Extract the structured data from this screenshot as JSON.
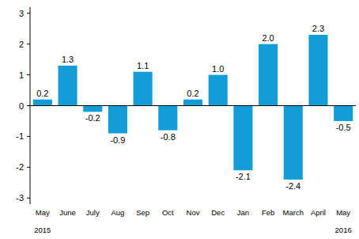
{
  "chart_data": {
    "type": "bar",
    "categories": [
      "May",
      "June",
      "July",
      "Aug",
      "Sep",
      "Oct",
      "Nov",
      "Dec",
      "Jan",
      "Feb",
      "March",
      "April",
      "May"
    ],
    "values": [
      0.2,
      1.3,
      -0.2,
      -0.9,
      1.1,
      -0.8,
      0.2,
      1.0,
      -2.1,
      2.0,
      -2.4,
      2.3,
      -0.5
    ],
    "value_labels": [
      "0.2",
      "1.3",
      "-0.2",
      "-0.9",
      "1.1",
      "-0.8",
      "0.2",
      "1.0",
      "-2.1",
      "2.0",
      "-2.4",
      "2.3",
      "-0.5"
    ],
    "color": "#129dd8",
    "ylim": [
      -3.2,
      3.2
    ],
    "yticks": [
      -3,
      -2,
      -1,
      0,
      1,
      2,
      3
    ],
    "grid": false,
    "data_labels": true,
    "annotations": [
      {
        "text": "2015",
        "index": 0
      },
      {
        "text": "2016",
        "index": 12
      }
    ]
  }
}
